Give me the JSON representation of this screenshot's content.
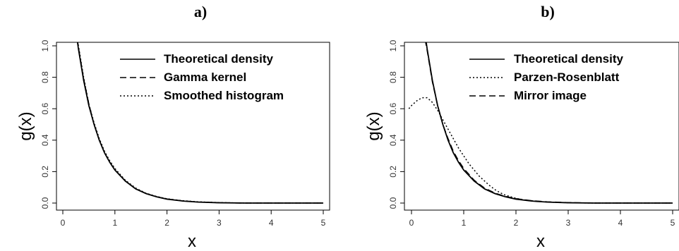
{
  "chart_data": [
    {
      "panel": "a)",
      "type": "line",
      "xlabel": "x",
      "ylabel": "g(x)",
      "xlim": [
        0,
        5
      ],
      "ylim": [
        0,
        1.0
      ],
      "xticks": [
        "0",
        "1",
        "2",
        "3",
        "4",
        "5"
      ],
      "yticks": [
        "0.0",
        "0.2",
        "0.4",
        "0.6",
        "0.8",
        "1.0"
      ],
      "grid": false,
      "legend_position": "top-right",
      "series": [
        {
          "name": "Theoretical density",
          "style": "solid",
          "color": "#000000",
          "x": [
            0.27,
            0.3,
            0.4,
            0.5,
            0.6,
            0.7,
            0.8,
            0.9,
            1.0,
            1.2,
            1.4,
            1.6,
            1.8,
            2.0,
            2.3,
            2.6,
            3.0,
            3.5,
            4.0,
            4.5,
            5.0
          ],
          "y": [
            1.05,
            0.98,
            0.78,
            0.62,
            0.5,
            0.4,
            0.32,
            0.26,
            0.21,
            0.14,
            0.09,
            0.06,
            0.04,
            0.025,
            0.013,
            0.006,
            0.002,
            0.0,
            0.0,
            0.0,
            0.0
          ]
        },
        {
          "name": "Gamma kernel",
          "style": "dashed",
          "color": "#000000",
          "x": [
            0.28,
            0.3,
            0.4,
            0.5,
            0.6,
            0.7,
            0.8,
            0.9,
            1.0,
            1.2,
            1.4,
            1.6,
            1.8,
            2.0,
            2.3,
            2.6,
            3.0,
            3.5,
            4.0,
            4.5,
            5.0
          ],
          "y": [
            1.04,
            0.99,
            0.79,
            0.63,
            0.5,
            0.4,
            0.32,
            0.26,
            0.21,
            0.14,
            0.09,
            0.06,
            0.04,
            0.026,
            0.014,
            0.007,
            0.002,
            0.0,
            0.0,
            0.0,
            0.0
          ]
        },
        {
          "name": "Smoothed histogram",
          "style": "dotted",
          "color": "#000000",
          "x": [
            0.29,
            0.3,
            0.4,
            0.5,
            0.6,
            0.7,
            0.8,
            0.9,
            1.0,
            1.2,
            1.4,
            1.6,
            1.8,
            2.0,
            2.3,
            2.6,
            3.0,
            3.5,
            4.0,
            4.5,
            5.0
          ],
          "y": [
            1.03,
            1.0,
            0.8,
            0.63,
            0.51,
            0.41,
            0.33,
            0.27,
            0.22,
            0.145,
            0.095,
            0.062,
            0.042,
            0.027,
            0.015,
            0.008,
            0.003,
            0.0,
            0.0,
            0.0,
            0.0
          ]
        }
      ]
    },
    {
      "panel": "b)",
      "type": "line",
      "xlabel": "x",
      "ylabel": "g(x)",
      "xlim": [
        0,
        5
      ],
      "ylim": [
        0,
        1.0
      ],
      "xticks": [
        "0",
        "1",
        "2",
        "3",
        "4",
        "5"
      ],
      "yticks": [
        "0.0",
        "0.2",
        "0.4",
        "0.6",
        "0.8",
        "1.0"
      ],
      "grid": false,
      "legend_position": "top-right",
      "series": [
        {
          "name": "Theoretical density",
          "style": "solid",
          "color": "#000000",
          "x": [
            0.27,
            0.3,
            0.4,
            0.5,
            0.6,
            0.7,
            0.8,
            0.9,
            1.0,
            1.2,
            1.4,
            1.6,
            1.8,
            2.0,
            2.3,
            2.6,
            3.0,
            3.5,
            4.0,
            4.5,
            5.0
          ],
          "y": [
            1.05,
            0.98,
            0.78,
            0.62,
            0.5,
            0.4,
            0.32,
            0.26,
            0.21,
            0.14,
            0.09,
            0.06,
            0.04,
            0.025,
            0.013,
            0.006,
            0.002,
            0.0,
            0.0,
            0.0,
            0.0
          ]
        },
        {
          "name": "Parzen-Rosenblatt",
          "style": "dotted",
          "color": "#000000",
          "x": [
            -0.05,
            0.0,
            0.1,
            0.2,
            0.3,
            0.4,
            0.5,
            0.6,
            0.7,
            0.8,
            0.9,
            1.0,
            1.1,
            1.2,
            1.3,
            1.4,
            1.5,
            1.6,
            1.7,
            1.8,
            2.0,
            2.2,
            2.5,
            3.0,
            3.5,
            4.0,
            5.0
          ],
          "y": [
            0.6,
            0.62,
            0.65,
            0.67,
            0.67,
            0.64,
            0.59,
            0.53,
            0.47,
            0.41,
            0.35,
            0.3,
            0.25,
            0.21,
            0.17,
            0.14,
            0.11,
            0.085,
            0.065,
            0.05,
            0.03,
            0.018,
            0.008,
            0.002,
            0.0,
            0.0,
            0.0
          ]
        },
        {
          "name": "Mirror image",
          "style": "dashed",
          "color": "#000000",
          "x": [
            0.26,
            0.3,
            0.4,
            0.5,
            0.6,
            0.7,
            0.8,
            0.9,
            1.0,
            1.2,
            1.4,
            1.6,
            1.8,
            2.0,
            2.3,
            2.6,
            3.0,
            3.5,
            4.0,
            4.5,
            5.0
          ],
          "y": [
            1.04,
            0.97,
            0.77,
            0.62,
            0.5,
            0.41,
            0.33,
            0.27,
            0.22,
            0.145,
            0.095,
            0.063,
            0.042,
            0.028,
            0.015,
            0.008,
            0.003,
            0.0,
            0.0,
            0.0,
            0.0
          ]
        }
      ]
    }
  ]
}
